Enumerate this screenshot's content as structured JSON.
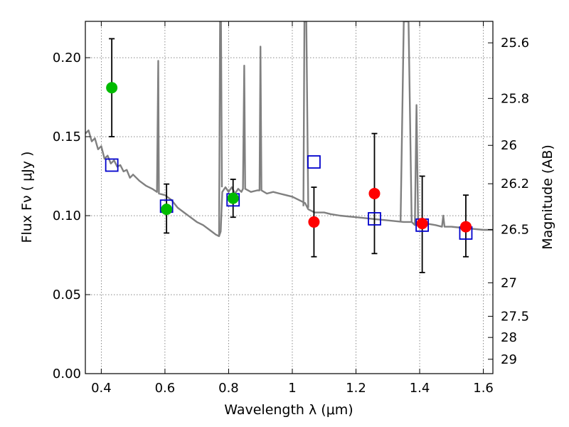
{
  "chart_data": {
    "type": "scatter",
    "xlabel": "Wavelength  λ (μm)",
    "ylabel": "Flux  Fν  ( μJy )",
    "ylabel_right": "Magnitude (AB)",
    "xlim": [
      0.35,
      1.63
    ],
    "ylim": [
      0.0,
      0.223
    ],
    "x_ticks": [
      0.4,
      0.6,
      0.8,
      1.0,
      1.2,
      1.4,
      1.6
    ],
    "x_tick_labels": [
      "0.4",
      "0.6",
      "0.8",
      "1",
      "1.2",
      "1.4",
      "1.6"
    ],
    "y_ticks": [
      0.0,
      0.05,
      0.1,
      0.15,
      0.2
    ],
    "y_tick_labels": [
      "0.00",
      "0.05",
      "0.10",
      "0.15",
      "0.20"
    ],
    "mag_ticks": [
      {
        "label": "25.6",
        "flux": 0.2094
      },
      {
        "label": "25.8",
        "flux": 0.1742
      },
      {
        "label": "26",
        "flux": 0.1445
      },
      {
        "label": "26.2",
        "flux": 0.1202
      },
      {
        "label": "26.5",
        "flux": 0.0912
      },
      {
        "label": "27",
        "flux": 0.0575
      },
      {
        "label": "27.5",
        "flux": 0.0363
      },
      {
        "label": "28",
        "flux": 0.0229
      },
      {
        "label": "29",
        "flux": 0.0091
      }
    ],
    "grid": true,
    "colors": {
      "model": "#808080",
      "green": "#00bb00",
      "red": "#ff0000",
      "square": "#0000cc",
      "errorbar": "#000000"
    },
    "series": [
      {
        "kind": "model",
        "points": [
          [
            0.35,
            0.152
          ],
          [
            0.36,
            0.154
          ],
          [
            0.37,
            0.147
          ],
          [
            0.38,
            0.149
          ],
          [
            0.39,
            0.142
          ],
          [
            0.4,
            0.144
          ],
          [
            0.41,
            0.136
          ],
          [
            0.42,
            0.138
          ],
          [
            0.43,
            0.133
          ],
          [
            0.44,
            0.135
          ],
          [
            0.45,
            0.131
          ],
          [
            0.46,
            0.132
          ],
          [
            0.47,
            0.128
          ],
          [
            0.48,
            0.129
          ],
          [
            0.49,
            0.124
          ],
          [
            0.5,
            0.126
          ],
          [
            0.52,
            0.122
          ],
          [
            0.54,
            0.119
          ],
          [
            0.56,
            0.117
          ],
          [
            0.575,
            0.115
          ],
          [
            0.579,
            0.198
          ],
          [
            0.581,
            0.114
          ],
          [
            0.6,
            0.113
          ],
          [
            0.62,
            0.11
          ],
          [
            0.64,
            0.105
          ],
          [
            0.66,
            0.102
          ],
          [
            0.68,
            0.099
          ],
          [
            0.7,
            0.096
          ],
          [
            0.72,
            0.094
          ],
          [
            0.74,
            0.091
          ],
          [
            0.76,
            0.088
          ],
          [
            0.77,
            0.087
          ],
          [
            0.775,
            0.09
          ],
          [
            0.78,
            0.115
          ],
          [
            0.79,
            0.118
          ],
          [
            0.8,
            0.115
          ],
          [
            0.81,
            0.118
          ],
          [
            0.82,
            0.114
          ],
          [
            0.83,
            0.117
          ],
          [
            0.84,
            0.115
          ],
          [
            0.845,
            0.117
          ],
          [
            0.849,
            0.195
          ],
          [
            0.852,
            0.117
          ],
          [
            0.87,
            0.115
          ],
          [
            0.89,
            0.116
          ],
          [
            0.897,
            0.116
          ],
          [
            0.9,
            0.207
          ],
          [
            0.903,
            0.116
          ],
          [
            0.92,
            0.114
          ],
          [
            0.94,
            0.115
          ],
          [
            0.96,
            0.114
          ],
          [
            0.98,
            0.113
          ],
          [
            1.0,
            0.112
          ],
          [
            1.02,
            0.11
          ],
          [
            1.04,
            0.108
          ],
          [
            1.05,
            0.104
          ],
          [
            1.07,
            0.102
          ],
          [
            1.1,
            0.102
          ],
          [
            1.12,
            0.101
          ],
          [
            1.15,
            0.1
          ],
          [
            1.2,
            0.099
          ],
          [
            1.25,
            0.098
          ],
          [
            1.3,
            0.097
          ],
          [
            1.35,
            0.096
          ],
          [
            1.375,
            0.096
          ],
          [
            1.385,
            0.094
          ],
          [
            1.39,
            0.17
          ],
          [
            1.395,
            0.098
          ],
          [
            1.42,
            0.095
          ],
          [
            1.45,
            0.094
          ],
          [
            1.47,
            0.093
          ],
          [
            1.474,
            0.1
          ],
          [
            1.478,
            0.093
          ],
          [
            1.5,
            0.093
          ],
          [
            1.55,
            0.092
          ],
          [
            1.6,
            0.091
          ],
          [
            1.63,
            0.091
          ]
        ],
        "spikes": [
          [
            0.77,
            0.087
          ],
          [
            0.773,
            0.223
          ],
          [
            0.776,
            0.223
          ],
          [
            0.779,
            0.118
          ],
          [
            1.035,
            0.106
          ],
          [
            1.038,
            0.223
          ],
          [
            1.044,
            0.223
          ],
          [
            1.05,
            0.105
          ],
          [
            1.34,
            0.096
          ],
          [
            1.35,
            0.223
          ],
          [
            1.365,
            0.223
          ],
          [
            1.375,
            0.096
          ]
        ]
      },
      {
        "kind": "green_points",
        "points": [
          {
            "x": 0.433,
            "y": 0.181,
            "err_low": 0.15,
            "err_high": 0.212
          },
          {
            "x": 0.605,
            "y": 0.104,
            "err_low": 0.089,
            "err_high": 0.12
          },
          {
            "x": 0.814,
            "y": 0.111,
            "err_low": 0.099,
            "err_high": 0.123
          }
        ]
      },
      {
        "kind": "red_points",
        "points": [
          {
            "x": 1.068,
            "y": 0.096,
            "err_low": 0.074,
            "err_high": 0.118
          },
          {
            "x": 1.258,
            "y": 0.114,
            "err_low": 0.076,
            "err_high": 0.152
          },
          {
            "x": 1.408,
            "y": 0.095,
            "err_low": 0.064,
            "err_high": 0.125
          },
          {
            "x": 1.545,
            "y": 0.093,
            "err_low": 0.074,
            "err_high": 0.113
          }
        ]
      },
      {
        "kind": "model_squares",
        "points": [
          {
            "x": 0.433,
            "y": 0.132
          },
          {
            "x": 0.605,
            "y": 0.106
          },
          {
            "x": 0.814,
            "y": 0.11
          },
          {
            "x": 1.068,
            "y": 0.134
          },
          {
            "x": 1.258,
            "y": 0.098
          },
          {
            "x": 1.408,
            "y": 0.094
          },
          {
            "x": 1.545,
            "y": 0.089
          }
        ]
      }
    ]
  }
}
